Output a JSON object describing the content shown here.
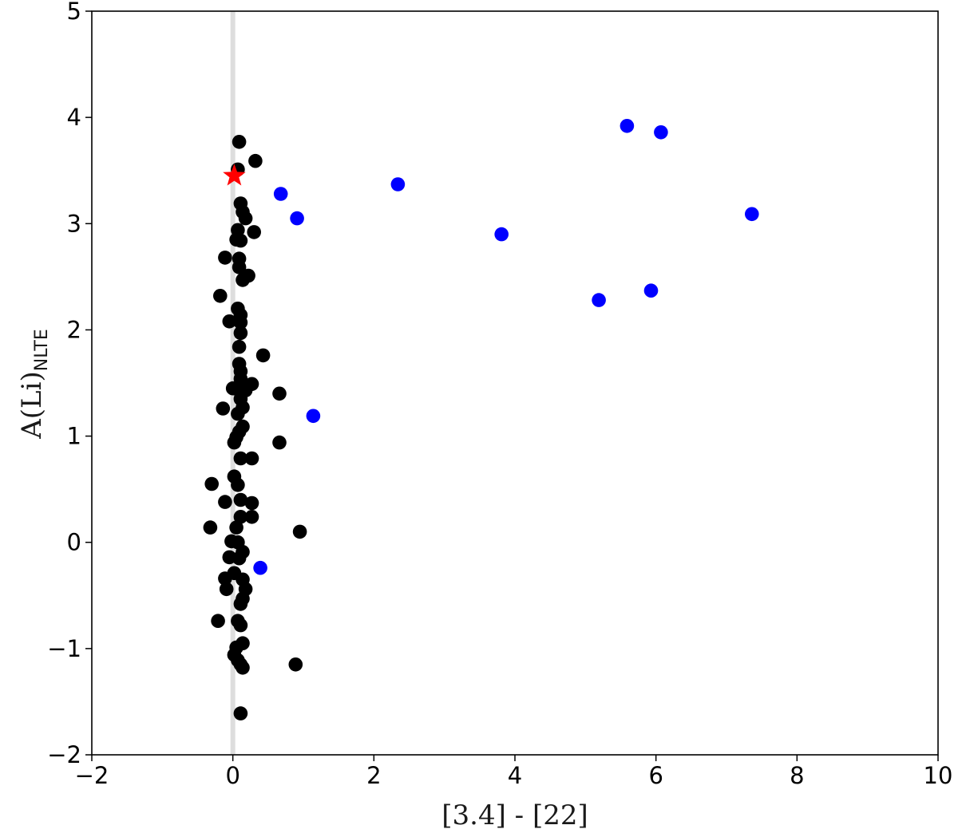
{
  "chart_data": {
    "type": "scatter",
    "title": "",
    "xlabel": "[3.4] - [22]",
    "ylabel": "A(Li)",
    "ylabel_subscript": "NLTE",
    "xlim": [
      -2,
      10
    ],
    "ylim": [
      -2,
      5
    ],
    "xticks": [
      -2,
      0,
      2,
      4,
      6,
      8,
      10
    ],
    "yticks": [
      -2,
      -1,
      0,
      1,
      2,
      3,
      4,
      5
    ],
    "xtick_labels": [
      "−2",
      "0",
      "2",
      "4",
      "6",
      "8",
      "10"
    ],
    "ytick_labels": [
      "−2",
      "−1",
      "0",
      "1",
      "2",
      "3",
      "4",
      "5"
    ],
    "grid": false,
    "reference_line": {
      "x": 0,
      "color": "#dddddd"
    },
    "series": [
      {
        "color": "#000000",
        "marker": "circle",
        "points": [
          [
            0.09,
            3.77
          ],
          [
            0.32,
            3.59
          ],
          [
            0.07,
            3.51
          ],
          [
            0.11,
            3.19
          ],
          [
            0.14,
            3.11
          ],
          [
            0.18,
            3.05
          ],
          [
            0.07,
            2.94
          ],
          [
            0.3,
            2.92
          ],
          [
            0.05,
            2.85
          ],
          [
            0.11,
            2.84
          ],
          [
            -0.11,
            2.68
          ],
          [
            0.09,
            2.67
          ],
          [
            0.09,
            2.59
          ],
          [
            0.22,
            2.51
          ],
          [
            0.14,
            2.47
          ],
          [
            -0.18,
            2.32
          ],
          [
            0.07,
            2.2
          ],
          [
            0.11,
            2.14
          ],
          [
            -0.05,
            2.08
          ],
          [
            0.11,
            2.07
          ],
          [
            0.11,
            1.97
          ],
          [
            0.09,
            1.84
          ],
          [
            0.43,
            1.76
          ],
          [
            0.09,
            1.68
          ],
          [
            0.11,
            1.61
          ],
          [
            0.11,
            1.54
          ],
          [
            0.27,
            1.49
          ],
          [
            0.0,
            1.45
          ],
          [
            0.07,
            1.44
          ],
          [
            0.18,
            1.43
          ],
          [
            0.66,
            1.4
          ],
          [
            0.11,
            1.35
          ],
          [
            0.14,
            1.27
          ],
          [
            -0.14,
            1.26
          ],
          [
            0.07,
            1.21
          ],
          [
            0.14,
            1.09
          ],
          [
            0.09,
            1.04
          ],
          [
            0.05,
            0.99
          ],
          [
            0.02,
            0.94
          ],
          [
            0.66,
            0.94
          ],
          [
            0.11,
            0.79
          ],
          [
            0.27,
            0.79
          ],
          [
            0.02,
            0.62
          ],
          [
            -0.3,
            0.55
          ],
          [
            0.07,
            0.54
          ],
          [
            0.11,
            0.4
          ],
          [
            -0.11,
            0.38
          ],
          [
            0.27,
            0.37
          ],
          [
            0.11,
            0.24
          ],
          [
            0.27,
            0.24
          ],
          [
            -0.32,
            0.14
          ],
          [
            0.05,
            0.14
          ],
          [
            0.95,
            0.1
          ],
          [
            -0.02,
            0.01
          ],
          [
            0.07,
            0.0
          ],
          [
            0.14,
            -0.09
          ],
          [
            -0.05,
            -0.14
          ],
          [
            0.09,
            -0.15
          ],
          [
            0.02,
            -0.29
          ],
          [
            -0.11,
            -0.34
          ],
          [
            0.14,
            -0.35
          ],
          [
            0.18,
            -0.44
          ],
          [
            -0.09,
            -0.44
          ],
          [
            0.14,
            -0.53
          ],
          [
            0.11,
            -0.58
          ],
          [
            -0.21,
            -0.74
          ],
          [
            0.07,
            -0.74
          ],
          [
            0.11,
            -0.78
          ],
          [
            0.14,
            -0.95
          ],
          [
            0.05,
            -0.99
          ],
          [
            0.02,
            -1.06
          ],
          [
            0.07,
            -1.11
          ],
          [
            0.11,
            -1.15
          ],
          [
            0.89,
            -1.15
          ],
          [
            0.14,
            -1.18
          ],
          [
            0.11,
            -1.61
          ]
        ]
      },
      {
        "color": "#0000ff",
        "marker": "circle",
        "points": [
          [
            5.59,
            3.92
          ],
          [
            6.07,
            3.86
          ],
          [
            2.34,
            3.37
          ],
          [
            0.68,
            3.28
          ],
          [
            0.91,
            3.05
          ],
          [
            7.36,
            3.09
          ],
          [
            3.81,
            2.9
          ],
          [
            5.93,
            2.37
          ],
          [
            5.19,
            2.28
          ],
          [
            1.14,
            1.19
          ],
          [
            0.39,
            -0.24
          ]
        ]
      },
      {
        "color": "#ff0000",
        "marker": "star",
        "points": [
          [
            0.02,
            3.45
          ]
        ]
      }
    ]
  }
}
